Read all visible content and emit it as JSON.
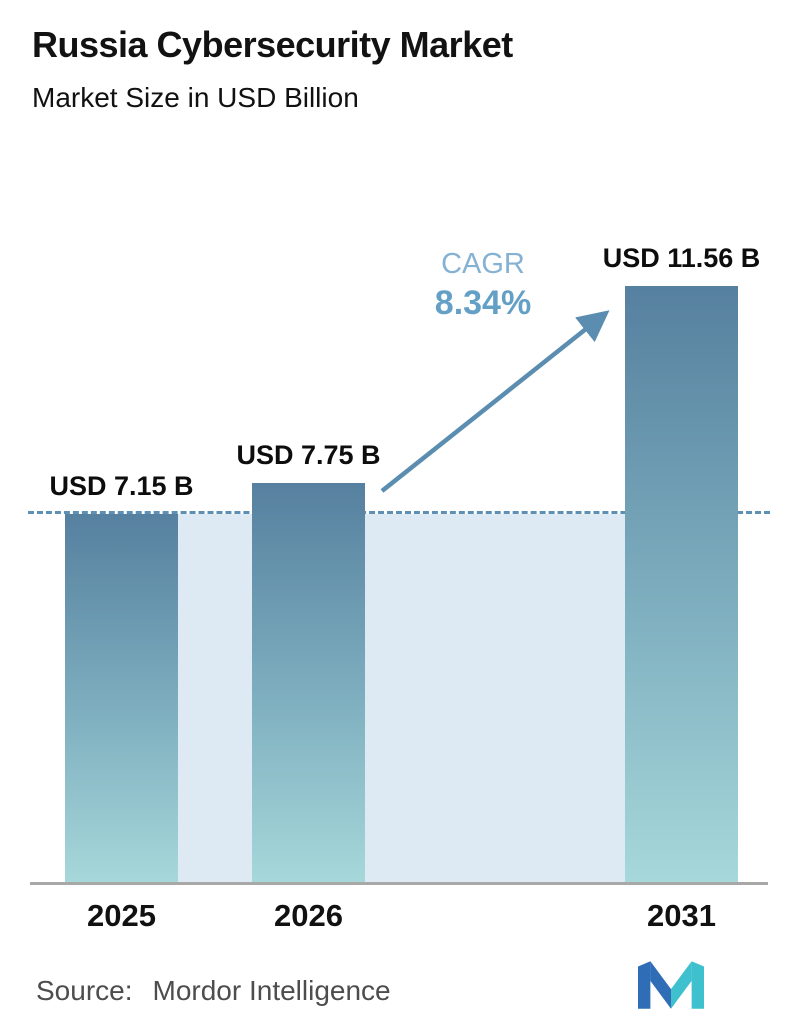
{
  "header": {
    "title": "Russia Cybersecurity Market",
    "subtitle": "Market Size in USD Billion"
  },
  "chart_data": {
    "type": "bar",
    "categories": [
      "2025",
      "2026",
      "2031"
    ],
    "values": [
      7.15,
      7.75,
      11.56
    ],
    "value_labels": [
      "USD 7.15 B",
      "USD 7.75 B",
      "USD 11.56 B"
    ],
    "title": "Russia Cybersecurity Market",
    "subtitle": "Market Size in USD Billion",
    "xlabel": "",
    "ylabel": "Market Size in USD Billion",
    "ylim": [
      0,
      12
    ],
    "grid": false,
    "legend": "none",
    "cagr_label": "CAGR",
    "cagr_value": "8.34%",
    "baseline_value": 7.15,
    "annotations": [
      "dashed reference line at 7.15",
      "arrow from 2026 bar to 2031 bar"
    ]
  },
  "footer": {
    "source_label": "Source:",
    "source_value": "Mordor Intelligence"
  },
  "colors": {
    "bar_top": "#56809f",
    "bar_bottom": "#a7d8da",
    "band": "#dde9f3",
    "dashed_line": "#5d90b4",
    "arrow": "#5b8db0",
    "cagr_label": "#85b2d3",
    "cagr_value": "#64a0c6",
    "axis": "#a8a8a8",
    "logo_blue": "#2f6eb6",
    "logo_teal": "#3fc0cf"
  }
}
